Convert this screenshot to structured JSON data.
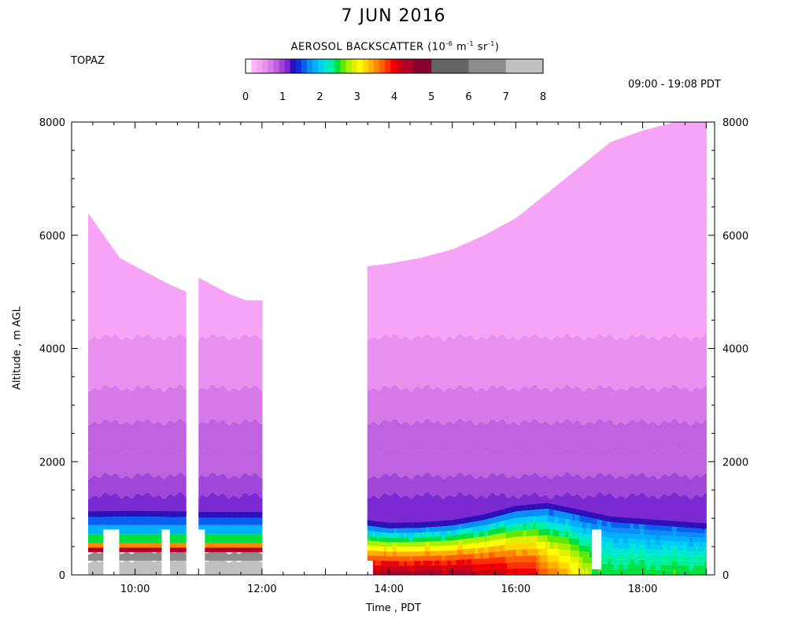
{
  "chart_data": {
    "type": "heatmap",
    "title": "7 JUN 2016",
    "site": "TOPAZ",
    "time_range": "09:00 - 19:08 PDT",
    "colorbar": {
      "title_main": "AEROSOL BACKSCATTER (10",
      "title_exp1": "-6",
      "title_mid1": " m",
      "title_exp2": "-1",
      "title_mid2": " sr",
      "title_exp3": "-1",
      "title_end": ")",
      "range": [
        0,
        8
      ],
      "tick_labels": [
        "0",
        "1",
        "2",
        "3",
        "4",
        "5",
        "6",
        "7",
        "8"
      ],
      "bins": [
        {
          "lo": 0.0,
          "hi": 0.15,
          "color": "#ffffff"
        },
        {
          "lo": 0.15,
          "hi": 0.3,
          "color": "#ffb8ff"
        },
        {
          "lo": 0.3,
          "hi": 0.45,
          "color": "#f7a4f7"
        },
        {
          "lo": 0.45,
          "hi": 0.6,
          "color": "#e890f0"
        },
        {
          "lo": 0.6,
          "hi": 0.75,
          "color": "#d57ae8"
        },
        {
          "lo": 0.75,
          "hi": 0.9,
          "color": "#bf62e0"
        },
        {
          "lo": 0.9,
          "hi": 1.05,
          "color": "#a046d8"
        },
        {
          "lo": 1.05,
          "hi": 1.2,
          "color": "#7a2ad0"
        },
        {
          "lo": 1.2,
          "hi": 1.35,
          "color": "#2a10b8"
        },
        {
          "lo": 1.35,
          "hi": 1.5,
          "color": "#1030e0"
        },
        {
          "lo": 1.5,
          "hi": 1.65,
          "color": "#0860f0"
        },
        {
          "lo": 1.65,
          "hi": 1.8,
          "color": "#0890f8"
        },
        {
          "lo": 1.8,
          "hi": 1.95,
          "color": "#00b0ff"
        },
        {
          "lo": 1.95,
          "hi": 2.1,
          "color": "#00d0f0"
        },
        {
          "lo": 2.1,
          "hi": 2.25,
          "color": "#00e8d0"
        },
        {
          "lo": 2.25,
          "hi": 2.4,
          "color": "#00f0a0"
        },
        {
          "lo": 2.4,
          "hi": 2.55,
          "color": "#00e040"
        },
        {
          "lo": 2.55,
          "hi": 2.7,
          "color": "#60e800"
        },
        {
          "lo": 2.7,
          "hi": 2.85,
          "color": "#a8f000"
        },
        {
          "lo": 2.85,
          "hi": 3.0,
          "color": "#e0f000"
        },
        {
          "lo": 3.0,
          "hi": 3.15,
          "color": "#ffff00"
        },
        {
          "lo": 3.15,
          "hi": 3.3,
          "color": "#ffd800"
        },
        {
          "lo": 3.3,
          "hi": 3.45,
          "color": "#ffb000"
        },
        {
          "lo": 3.45,
          "hi": 3.6,
          "color": "#ff8800"
        },
        {
          "lo": 3.6,
          "hi": 3.75,
          "color": "#ff6000"
        },
        {
          "lo": 3.75,
          "hi": 3.9,
          "color": "#ff3000"
        },
        {
          "lo": 3.9,
          "hi": 4.05,
          "color": "#f00000"
        },
        {
          "lo": 4.05,
          "hi": 4.2,
          "color": "#d00010"
        },
        {
          "lo": 4.2,
          "hi": 4.5,
          "color": "#b0002a"
        },
        {
          "lo": 4.5,
          "hi": 5.0,
          "color": "#8a0030"
        },
        {
          "lo": 5.0,
          "hi": 6.0,
          "color": "#646464"
        },
        {
          "lo": 6.0,
          "hi": 7.0,
          "color": "#8c8c8c"
        },
        {
          "lo": 7.0,
          "hi": 8.0,
          "color": "#c0c0c0"
        }
      ]
    },
    "xlabel": "Time , PDT",
    "ylabel": "Altitude , m AGL",
    "x_range_hours": [
      9.0,
      19.133
    ],
    "x_ticks": [
      {
        "hour": 10,
        "label": "10:00"
      },
      {
        "hour": 12,
        "label": "12:00"
      },
      {
        "hour": 14,
        "label": "14:00"
      },
      {
        "hour": 16,
        "label": "16:00"
      },
      {
        "hour": 18,
        "label": "18:00"
      }
    ],
    "ylim": [
      0,
      8000
    ],
    "y_ticks": [
      0,
      2000,
      4000,
      6000,
      8000
    ],
    "y_tick_labels": [
      "0",
      "2000",
      "4000",
      "6000",
      "8000"
    ],
    "data_gaps_hours": [
      [
        9.0,
        9.25
      ],
      [
        10.8,
        11.0
      ],
      [
        12.0,
        13.65
      ],
      [
        19.0,
        19.133
      ]
    ],
    "data_top_m": [
      [
        9.25,
        6400
      ],
      [
        9.5,
        6000
      ],
      [
        9.75,
        5600
      ],
      [
        10.0,
        5450
      ],
      [
        10.25,
        5300
      ],
      [
        10.5,
        5150
      ],
      [
        10.8,
        5000
      ],
      [
        11.0,
        5250
      ],
      [
        11.25,
        5100
      ],
      [
        11.5,
        4950
      ],
      [
        11.75,
        4850
      ],
      [
        12.0,
        4850
      ],
      [
        13.65,
        5450
      ],
      [
        14.0,
        5500
      ],
      [
        14.5,
        5600
      ],
      [
        15.0,
        5750
      ],
      [
        15.5,
        6000
      ],
      [
        16.0,
        6300
      ],
      [
        16.5,
        6750
      ],
      [
        17.0,
        7200
      ],
      [
        17.5,
        7650
      ],
      [
        18.0,
        7850
      ],
      [
        18.5,
        8000
      ],
      [
        19.0,
        8000
      ]
    ],
    "boundary_layer_top_m": [
      [
        9.25,
        1050
      ],
      [
        10.0,
        1060
      ],
      [
        10.8,
        1050
      ],
      [
        11.0,
        1040
      ],
      [
        12.0,
        1040
      ],
      [
        13.65,
        900
      ],
      [
        14.0,
        850
      ],
      [
        14.5,
        860
      ],
      [
        15.0,
        900
      ],
      [
        15.5,
        1000
      ],
      [
        16.0,
        1150
      ],
      [
        16.5,
        1200
      ],
      [
        17.0,
        1080
      ],
      [
        17.5,
        960
      ],
      [
        18.0,
        920
      ],
      [
        18.5,
        880
      ],
      [
        19.0,
        840
      ]
    ],
    "layers_free_troposphere": [
      {
        "from_m": 1050,
        "to_m": 1400,
        "value": 1.1
      },
      {
        "from_m": 1400,
        "to_m": 1750,
        "value": 0.98
      },
      {
        "from_m": 1750,
        "to_m": 2200,
        "value": 0.88
      },
      {
        "from_m": 2200,
        "to_m": 2700,
        "value": 0.8
      },
      {
        "from_m": 2700,
        "to_m": 3300,
        "value": 0.7
      },
      {
        "from_m": 3300,
        "to_m": 4200,
        "value": 0.52
      },
      {
        "from_m": 4200,
        "to_m": 8000,
        "value": 0.35
      }
    ],
    "boundary_layer_profile_morning": [
      {
        "from_m": 0,
        "to_m": 250,
        "value": 7.2
      },
      {
        "from_m": 250,
        "to_m": 400,
        "value": 6.5
      },
      {
        "from_m": 400,
        "to_m": 480,
        "value": 4.3
      },
      {
        "from_m": 480,
        "to_m": 560,
        "value": 3.5
      },
      {
        "from_m": 560,
        "to_m": 720,
        "value": 2.5
      },
      {
        "from_m": 720,
        "to_m": 880,
        "value": 1.9
      },
      {
        "from_m": 880,
        "to_m": 1050,
        "value": 1.6
      }
    ],
    "boundary_layer_peak_afternoon": 4.3,
    "boundary_layer_peak_evening": 2.5
  }
}
